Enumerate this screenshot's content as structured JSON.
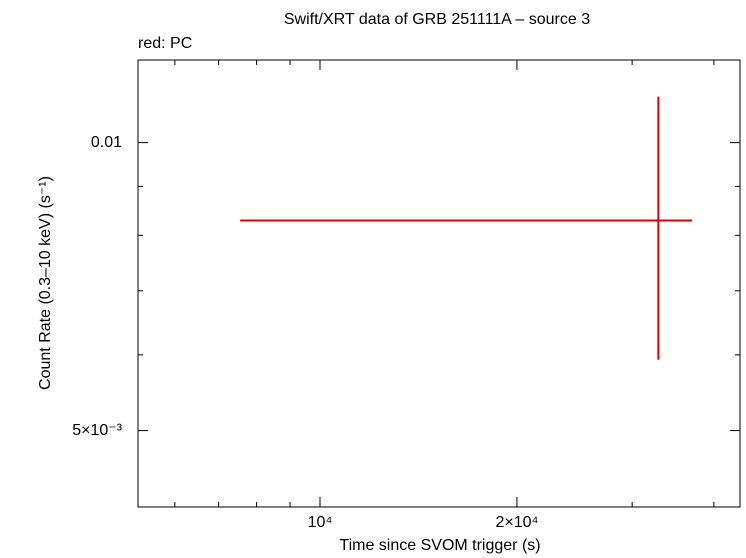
{
  "chart_data": {
    "type": "errorbar",
    "title": "Swift/XRT data of GRB 251111A – source 3",
    "legend_text": "red: PC",
    "x_label": "Time since SVOM trigger (s)",
    "y_label": "Count Rate (0.3–10 keV) (s⁻¹)",
    "xscale": "log",
    "yscale": "log",
    "xlim": [
      5270,
      43850
    ],
    "ylim": [
      0.00416,
      0.0122
    ],
    "xticks": [
      {
        "value": 10000,
        "label": "10⁴"
      },
      {
        "value": 20000,
        "label": "2×10⁴"
      }
    ],
    "xminor_ticks": [
      6000,
      7000,
      8000,
      9000,
      30000,
      40000
    ],
    "yticks": [
      {
        "value": 0.005,
        "label": "5×10⁻³"
      },
      0.01
    ],
    "yminor_ticks": [
      0.006,
      0.007,
      0.008,
      0.009
    ],
    "series": [
      {
        "color": "#e00000",
        "x": [
          32900
        ],
        "xerr_minus": [
          25350
        ],
        "xerr_plus": [
          4160
        ],
        "values": [
          0.00829
        ],
        "yerr_minus": [
          0.00236
        ],
        "yerr_plus": [
          0.00288
        ]
      }
    ]
  }
}
